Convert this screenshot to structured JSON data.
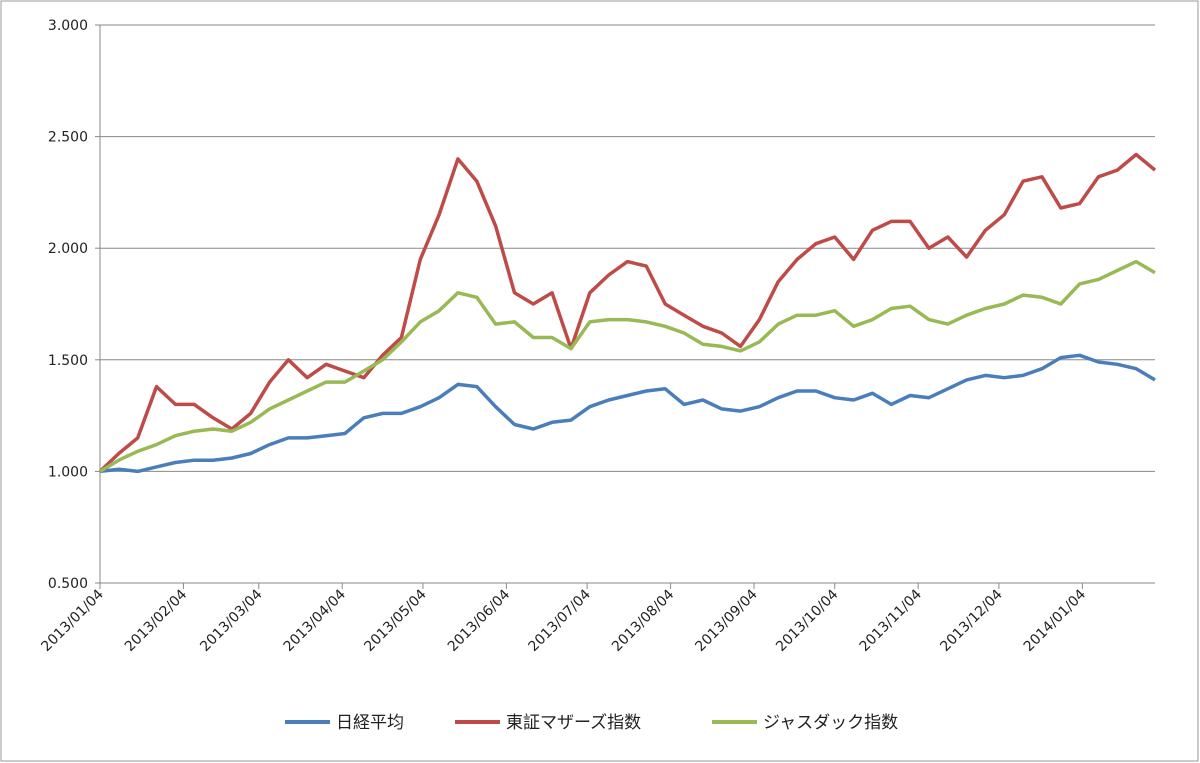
{
  "chart_data": {
    "type": "line",
    "x": [
      "2013/01/04",
      "2013/01/11",
      "2013/01/18",
      "2013/01/25",
      "2013/02/01",
      "2013/02/08",
      "2013/02/15",
      "2013/02/22",
      "2013/03/01",
      "2013/03/08",
      "2013/03/15",
      "2013/03/22",
      "2013/03/29",
      "2013/04/05",
      "2013/04/12",
      "2013/04/19",
      "2013/04/26",
      "2013/05/03",
      "2013/05/10",
      "2013/05/17",
      "2013/05/24",
      "2013/05/31",
      "2013/06/07",
      "2013/06/14",
      "2013/06/21",
      "2013/06/28",
      "2013/07/05",
      "2013/07/12",
      "2013/07/19",
      "2013/07/26",
      "2013/08/02",
      "2013/08/09",
      "2013/08/16",
      "2013/08/23",
      "2013/08/30",
      "2013/09/06",
      "2013/09/13",
      "2013/09/20",
      "2013/09/27",
      "2013/10/04",
      "2013/10/11",
      "2013/10/18",
      "2013/10/25",
      "2013/11/01",
      "2013/11/08",
      "2013/11/15",
      "2013/11/22",
      "2013/11/29",
      "2013/12/06",
      "2013/12/13",
      "2013/12/20",
      "2013/12/27",
      "2014/01/03",
      "2014/01/10",
      "2014/01/17",
      "2014/01/24",
      "2014/01/31"
    ],
    "series": [
      {
        "name": "日経平均",
        "color": "#4a7ebb",
        "values": [
          1.0,
          1.01,
          1.0,
          1.02,
          1.04,
          1.05,
          1.05,
          1.06,
          1.08,
          1.12,
          1.15,
          1.15,
          1.16,
          1.17,
          1.24,
          1.26,
          1.26,
          1.29,
          1.33,
          1.39,
          1.38,
          1.29,
          1.21,
          1.19,
          1.22,
          1.23,
          1.29,
          1.32,
          1.34,
          1.36,
          1.37,
          1.3,
          1.32,
          1.28,
          1.27,
          1.29,
          1.33,
          1.36,
          1.36,
          1.33,
          1.32,
          1.35,
          1.3,
          1.34,
          1.33,
          1.37,
          1.41,
          1.43,
          1.42,
          1.43,
          1.46,
          1.51,
          1.52,
          1.49,
          1.48,
          1.46,
          1.41
        ]
      },
      {
        "name": "東証マザーズ指数",
        "color": "#be4b48",
        "values": [
          1.0,
          1.08,
          1.15,
          1.38,
          1.3,
          1.3,
          1.24,
          1.19,
          1.26,
          1.4,
          1.5,
          1.42,
          1.48,
          1.45,
          1.42,
          1.52,
          1.6,
          1.95,
          2.15,
          2.4,
          2.3,
          2.1,
          1.8,
          1.75,
          1.8,
          1.55,
          1.8,
          1.88,
          1.94,
          1.92,
          1.75,
          1.7,
          1.65,
          1.62,
          1.56,
          1.68,
          1.85,
          1.95,
          2.02,
          2.05,
          1.95,
          2.08,
          2.12,
          2.12,
          2.0,
          2.05,
          1.96,
          2.08,
          2.15,
          2.3,
          2.32,
          2.18,
          2.2,
          2.32,
          2.35,
          2.42,
          2.35
        ]
      },
      {
        "name": "ジャスダック指数",
        "color": "#98b954",
        "values": [
          1.0,
          1.05,
          1.09,
          1.12,
          1.16,
          1.18,
          1.19,
          1.18,
          1.22,
          1.28,
          1.32,
          1.36,
          1.4,
          1.4,
          1.45,
          1.5,
          1.58,
          1.67,
          1.72,
          1.8,
          1.78,
          1.66,
          1.67,
          1.6,
          1.6,
          1.55,
          1.67,
          1.68,
          1.68,
          1.67,
          1.65,
          1.62,
          1.57,
          1.56,
          1.54,
          1.58,
          1.66,
          1.7,
          1.7,
          1.72,
          1.65,
          1.68,
          1.73,
          1.74,
          1.68,
          1.66,
          1.7,
          1.73,
          1.75,
          1.79,
          1.78,
          1.75,
          1.84,
          1.86,
          1.9,
          1.94,
          1.89
        ]
      }
    ],
    "xlim": [
      "2013/01/04",
      "2014/01/31"
    ],
    "xticks": [
      "2013/01/04",
      "2013/02/04",
      "2013/03/04",
      "2013/04/04",
      "2013/05/04",
      "2013/06/04",
      "2013/07/04",
      "2013/08/04",
      "2013/09/04",
      "2013/10/04",
      "2013/11/04",
      "2013/12/04",
      "2014/01/04"
    ],
    "ylim": [
      0.5,
      3
    ],
    "yticks": [
      {
        "value": 0.5,
        "label": "0.500"
      },
      {
        "value": 1,
        "label": "1.000"
      },
      {
        "value": 1.5,
        "label": "1.500"
      },
      {
        "value": 2,
        "label": "2.000"
      },
      {
        "value": 2.5,
        "label": "2.500"
      },
      {
        "value": 3,
        "label": "3.000"
      }
    ],
    "grid": true,
    "legend": "bottom"
  }
}
